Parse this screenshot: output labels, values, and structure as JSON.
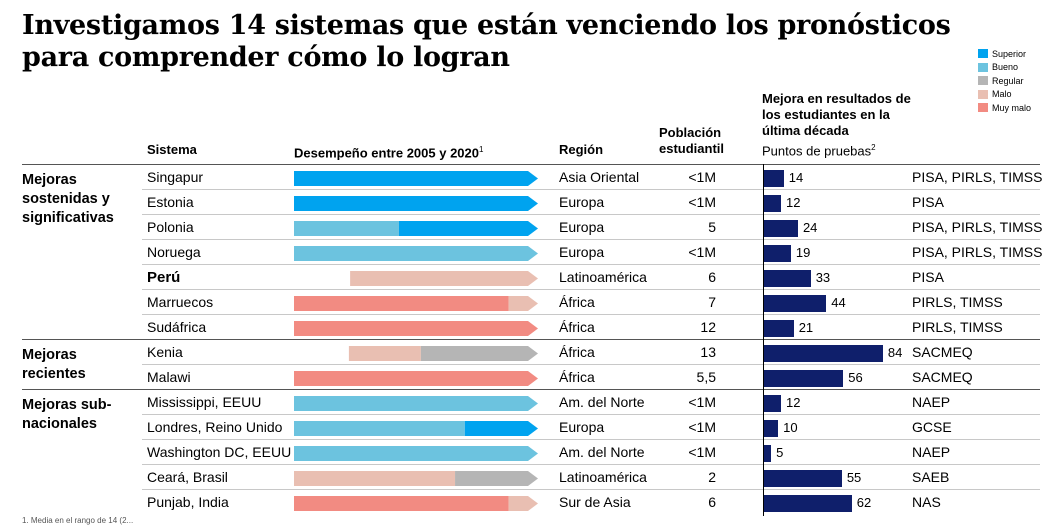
{
  "title": "Investigamos 14 sistemas que están venciendo los pronósticos para comprender cómo lo logran",
  "legend": [
    {
      "label": "Superior",
      "color": "#00a3ef"
    },
    {
      "label": "Bueno",
      "color": "#6cc3df"
    },
    {
      "label": "Regular",
      "color": "#b5b5b5"
    },
    {
      "label": "Malo",
      "color": "#e9bfb2"
    },
    {
      "label": "Muy malo",
      "color": "#f28b82"
    }
  ],
  "headers": {
    "system": "Sistema",
    "performance": "Desempeño entre 2005 y 2020",
    "performance_sup": "1",
    "region": "Región",
    "population": "Población estudiantil",
    "improvement": "Mejora en resultados de los estudiantes en la última década",
    "improvement_sub": "Puntos de pruebas",
    "improvement_sub_sup": "2"
  },
  "groups": [
    {
      "label": "Mejoras sostenidas y significativas"
    },
    {
      "label": "Mejoras recientes"
    },
    {
      "label": "Mejoras sub-nacionales"
    }
  ],
  "chart_data": {
    "type": "bar",
    "title": "Mejora en resultados de los estudiantes en la última década",
    "ylabel": "Puntos de pruebas",
    "categories": [
      "Singapur",
      "Estonia",
      "Polonia",
      "Noruega",
      "Perú",
      "Marruecos",
      "Sudáfrica",
      "Kenia",
      "Malawi",
      "Mississippi, EEUU",
      "Londres, Reino Unido",
      "Washington DC, EEUU",
      "Ceará, Brasil",
      "Punjab, India"
    ],
    "values": [
      14,
      12,
      24,
      19,
      33,
      44,
      21,
      84,
      56,
      12,
      10,
      5,
      55,
      62
    ],
    "xlim": [
      0,
      100
    ],
    "rows": [
      {
        "group": 0,
        "system": "Singapur",
        "bold": false,
        "region": "Asia Oriental",
        "population": "<1M",
        "improvement": 14,
        "tests": "PISA, PIRLS, TIMSS",
        "performance": [
          {
            "level": "Superior",
            "share": 1.0
          }
        ]
      },
      {
        "group": 0,
        "system": "Estonia",
        "bold": false,
        "region": "Europa",
        "population": "<1M",
        "improvement": 12,
        "tests": "PISA",
        "performance": [
          {
            "level": "Superior",
            "share": 1.0
          }
        ]
      },
      {
        "group": 0,
        "system": "Polonia",
        "bold": false,
        "region": "Europa",
        "population": "5",
        "improvement": 24,
        "tests": "PISA, PIRLS, TIMSS",
        "performance": [
          {
            "level": "Bueno",
            "share": 0.43
          },
          {
            "level": "Superior",
            "share": 0.57
          }
        ]
      },
      {
        "group": 0,
        "system": "Noruega",
        "bold": false,
        "region": "Europa",
        "population": "<1M",
        "improvement": 19,
        "tests": "PISA, PIRLS, TIMSS",
        "performance": [
          {
            "level": "Bueno",
            "share": 1.0
          }
        ]
      },
      {
        "group": 0,
        "system": "Perú",
        "bold": true,
        "region": "Latinoamérica",
        "population": "6",
        "improvement": 33,
        "tests": "PISA",
        "performance_start": 0.23,
        "performance": [
          {
            "level": "Malo",
            "share": 0.77
          }
        ]
      },
      {
        "group": 0,
        "system": "Marruecos",
        "bold": false,
        "region": "África",
        "population": "7",
        "improvement": 44,
        "tests": "PIRLS, TIMSS",
        "performance": [
          {
            "level": "Muy malo",
            "share": 0.88
          },
          {
            "level": "Malo",
            "share": 0.12
          }
        ]
      },
      {
        "group": 0,
        "system": "Sudáfrica",
        "bold": false,
        "region": "África",
        "population": "12",
        "improvement": 21,
        "tests": "PIRLS, TIMSS",
        "performance": [
          {
            "level": "Muy malo",
            "share": 1.0
          }
        ]
      },
      {
        "group": 1,
        "system": "Kenia",
        "bold": false,
        "region": "África",
        "population": "13",
        "improvement": 84,
        "tests": "SACMEQ",
        "performance_start": 0.225,
        "performance": [
          {
            "level": "Malo",
            "share": 0.295
          },
          {
            "level": "Regular",
            "share": 0.48
          }
        ]
      },
      {
        "group": 1,
        "system": "Malawi",
        "bold": false,
        "region": "África",
        "population": "5,5",
        "improvement": 56,
        "tests": "SACMEQ",
        "performance": [
          {
            "level": "Muy malo",
            "share": 1.0
          }
        ]
      },
      {
        "group": 2,
        "system": "Mississippi, EEUU",
        "bold": false,
        "region": "Am. del Norte",
        "population": "<1M",
        "improvement": 12,
        "tests": "NAEP",
        "performance": [
          {
            "level": "Bueno",
            "share": 1.0
          }
        ]
      },
      {
        "group": 2,
        "system": "Londres, Reino Unido",
        "bold": false,
        "region": "Europa",
        "population": "<1M",
        "improvement": 10,
        "tests": "GCSE",
        "performance": [
          {
            "level": "Bueno",
            "share": 0.7
          },
          {
            "level": "Superior",
            "share": 0.3
          }
        ]
      },
      {
        "group": 2,
        "system": "Washington DC, EEUU",
        "bold": false,
        "region": "Am. del Norte",
        "population": "<1M",
        "improvement": 5,
        "tests": "NAEP",
        "performance": [
          {
            "level": "Bueno",
            "share": 1.0
          }
        ]
      },
      {
        "group": 2,
        "system": "Ceará, Brasil",
        "bold": false,
        "region": "Latinoamérica",
        "population": "2",
        "improvement": 55,
        "tests": "SAEB",
        "performance": [
          {
            "level": "Malo",
            "share": 0.66
          },
          {
            "level": "Regular",
            "share": 0.34
          }
        ]
      },
      {
        "group": 2,
        "system": "Punjab, India",
        "bold": false,
        "region": "Sur de Asia",
        "population": "6",
        "improvement": 62,
        "tests": "NAS",
        "performance": [
          {
            "level": "Muy malo",
            "share": 0.88
          },
          {
            "level": "Malo",
            "share": 0.12
          }
        ]
      }
    ]
  },
  "footnote": "1. Media en el rango de 14 (2..."
}
